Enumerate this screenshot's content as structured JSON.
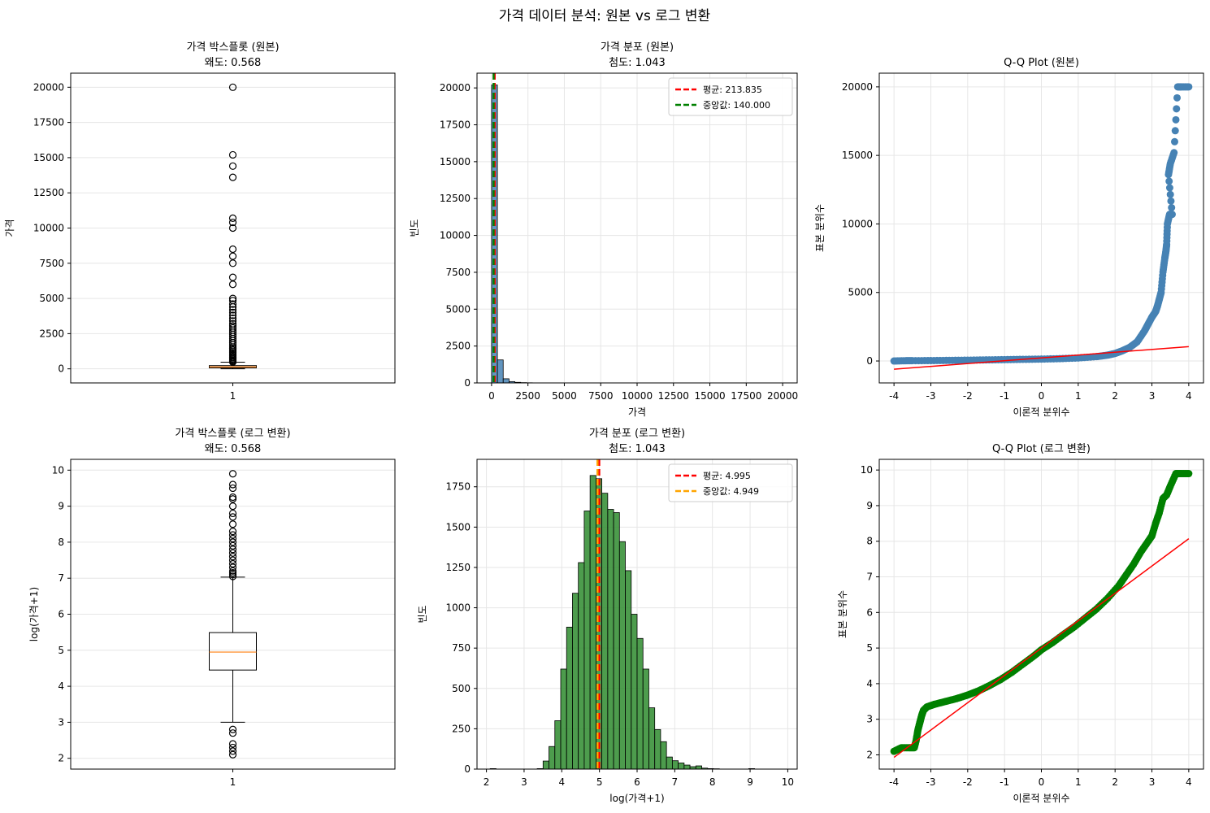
{
  "suptitle": "가격 데이터 분석: 원본 vs 로그 변환",
  "colors": {
    "steelblue": "#4682b4",
    "green": "#008000",
    "hist_green": "#2e8b2e",
    "red": "#ff0000",
    "orange": "#ffa500",
    "darkgreen": "#008000",
    "median_line": "#ff7f0e",
    "grid": "#e6e6e6"
  },
  "chart_data": [
    {
      "type": "box",
      "title": "가격 박스플롯 (원본)",
      "subtitle": "왜도: 0.568",
      "xlabel": "",
      "ylabel": "가격",
      "xticks": [
        "1"
      ],
      "ylim": [
        -1000,
        21000
      ],
      "yticks": [
        0,
        2500,
        5000,
        7500,
        10000,
        12500,
        15000,
        17500,
        20000
      ],
      "ytick_labels": [
        "0",
        "2500",
        "5000",
        "7500",
        "10000",
        "12500",
        "15000",
        "17500",
        "20000"
      ],
      "q1": 69,
      "median": 140,
      "q3": 229,
      "whisker_low": 0,
      "whisker_high": 469,
      "outliers": [
        480,
        550,
        620,
        700,
        780,
        850,
        950,
        1050,
        1150,
        1250,
        1350,
        1450,
        1550,
        1700,
        1850,
        2000,
        2150,
        2300,
        2450,
        2600,
        2750,
        2900,
        3050,
        3200,
        3400,
        3600,
        3800,
        4000,
        4200,
        4400,
        4600,
        4850,
        5000,
        6000,
        6500,
        7500,
        8000,
        8500,
        10000,
        10400,
        10700,
        13600,
        14400,
        15200,
        20000
      ]
    },
    {
      "type": "histogram",
      "title": "가격 분포 (원본)",
      "subtitle": "첨도: 1.043",
      "xlabel": "가격",
      "ylabel": "빈도",
      "xlim": [
        -1000,
        21000
      ],
      "ylim": [
        0,
        21000
      ],
      "xticks": [
        0,
        2500,
        5000,
        7500,
        10000,
        12500,
        15000,
        17500,
        20000
      ],
      "xtick_labels": [
        "0",
        "2500",
        "5000",
        "7500",
        "10000",
        "12500",
        "15000",
        "17500",
        "20000"
      ],
      "yticks": [
        0,
        2500,
        5000,
        7500,
        10000,
        12500,
        15000,
        17500,
        20000
      ],
      "ytick_labels": [
        "0",
        "2500",
        "5000",
        "7500",
        "10000",
        "12500",
        "15000",
        "17500",
        "20000"
      ],
      "bin_start": 0,
      "bin_width": 400,
      "counts": [
        20200,
        1560,
        280,
        90,
        40,
        20,
        10,
        5,
        5,
        0,
        0,
        0,
        0,
        0,
        0,
        0,
        0,
        0,
        0,
        0,
        0,
        0,
        0,
        0,
        0,
        0,
        0,
        0,
        0,
        0,
        0,
        0,
        0,
        0,
        0,
        0,
        0,
        0,
        0,
        0,
        0,
        0,
        0,
        0,
        0,
        0,
        0,
        0,
        0,
        0
      ],
      "bar_color": "steelblue",
      "mean": 213.835,
      "median": 140.0,
      "legend": [
        {
          "label": "평균: 213.835",
          "color": "#ff0000"
        },
        {
          "label": "중앙값: 140.000",
          "color": "#008000"
        }
      ],
      "legend_position": "upper right"
    },
    {
      "type": "scatter",
      "title": "Q-Q Plot (원본)",
      "xlabel": "이론적 분위수",
      "ylabel": "표본 분위수",
      "xlim": [
        -4.4,
        4.4
      ],
      "ylim": [
        -1600,
        21000
      ],
      "xticks": [
        -4,
        -3,
        -2,
        -1,
        0,
        1,
        2,
        3,
        4
      ],
      "xtick_labels": [
        "-4",
        "-3",
        "-2",
        "-1",
        "0",
        "1",
        "2",
        "3",
        "4"
      ],
      "yticks": [
        0,
        5000,
        10000,
        15000,
        20000
      ],
      "ytick_labels": [
        "0",
        "5000",
        "10000",
        "15000",
        "20000"
      ],
      "point_color": "steelblue",
      "points": [
        [
          -4.0,
          0
        ],
        [
          -3.7,
          20
        ],
        [
          -3.5,
          25
        ],
        [
          -3.0,
          30
        ],
        [
          -2.5,
          45
        ],
        [
          -2.0,
          60
        ],
        [
          -1.5,
          80
        ],
        [
          -1.0,
          100
        ],
        [
          -0.5,
          120
        ],
        [
          0.0,
          140
        ],
        [
          0.5,
          170
        ],
        [
          1.0,
          220
        ],
        [
          1.5,
          320
        ],
        [
          1.8,
          430
        ],
        [
          2.0,
          550
        ],
        [
          2.2,
          750
        ],
        [
          2.4,
          1000
        ],
        [
          2.6,
          1400
        ],
        [
          2.8,
          2200
        ],
        [
          2.9,
          2700
        ],
        [
          3.0,
          3200
        ],
        [
          3.1,
          3600
        ],
        [
          3.15,
          4000
        ],
        [
          3.2,
          4500
        ],
        [
          3.25,
          5000
        ],
        [
          3.3,
          6500
        ],
        [
          3.35,
          7500
        ],
        [
          3.38,
          8000
        ],
        [
          3.4,
          8500
        ],
        [
          3.42,
          10000
        ],
        [
          3.48,
          10700
        ],
        [
          3.55,
          10700
        ],
        [
          3.45,
          13600
        ],
        [
          3.5,
          14400
        ],
        [
          3.6,
          15200
        ],
        [
          3.7,
          20000
        ],
        [
          3.8,
          20000
        ],
        [
          4.0,
          20000
        ]
      ],
      "line": {
        "x": [
          -4.0,
          4.0
        ],
        "y": [
          -600,
          1050
        ],
        "color": "#ff0000"
      }
    },
    {
      "type": "box",
      "title": "가격 박스플롯 (로그 변환)",
      "subtitle": "왜도: 0.568",
      "xlabel": "",
      "ylabel": "log(가격+1)",
      "xticks": [
        "1"
      ],
      "ylim": [
        1.7,
        10.3
      ],
      "yticks": [
        2,
        3,
        4,
        5,
        6,
        7,
        8,
        9,
        10
      ],
      "ytick_labels": [
        "2",
        "3",
        "4",
        "5",
        "6",
        "7",
        "8",
        "9",
        "10"
      ],
      "q1": 4.45,
      "median": 4.949,
      "q3": 5.49,
      "whisker_low": 3.0,
      "whisker_high": 7.03,
      "outliers": [
        2.1,
        2.2,
        2.3,
        2.4,
        2.7,
        2.8,
        7.05,
        7.1,
        7.15,
        7.2,
        7.3,
        7.4,
        7.5,
        7.6,
        7.7,
        7.8,
        7.9,
        8.0,
        8.1,
        8.2,
        8.3,
        8.5,
        8.7,
        8.8,
        9.0,
        9.2,
        9.25,
        9.5,
        9.6,
        9.9
      ]
    },
    {
      "type": "histogram",
      "title": "가격 분포 (로그 변환)",
      "subtitle": "첨도: 1.043",
      "xlabel": "log(가격+1)",
      "ylabel": "빈도",
      "xlim": [
        1.75,
        10.25
      ],
      "ylim": [
        0,
        1920
      ],
      "xticks": [
        2,
        3,
        4,
        5,
        6,
        7,
        8,
        9,
        10
      ],
      "xtick_labels": [
        "2",
        "3",
        "4",
        "5",
        "6",
        "7",
        "8",
        "9",
        "10"
      ],
      "yticks": [
        0,
        250,
        500,
        750,
        1000,
        1250,
        1500,
        1750
      ],
      "ytick_labels": [
        "0",
        "250",
        "500",
        "750",
        "1000",
        "1250",
        "1500",
        "1750"
      ],
      "bin_start": 2.1,
      "bin_width": 0.156,
      "counts": [
        3,
        0,
        0,
        0,
        0,
        0,
        0,
        0,
        3,
        50,
        140,
        300,
        620,
        880,
        1090,
        1280,
        1600,
        1820,
        1800,
        1710,
        1610,
        1590,
        1410,
        1230,
        960,
        810,
        620,
        380,
        245,
        170,
        75,
        52,
        38,
        25,
        15,
        20,
        6,
        3,
        2,
        0,
        0,
        0,
        0,
        0,
        3,
        0,
        0,
        0,
        0,
        0
      ],
      "bar_color": "green",
      "mean": 4.995,
      "median": 4.949,
      "legend": [
        {
          "label": "평균: 4.995",
          "color": "#ff0000"
        },
        {
          "label": "중앙값: 4.949",
          "color": "#ffa500"
        }
      ],
      "legend_position": "upper right"
    },
    {
      "type": "scatter",
      "title": "Q-Q Plot (로그 변환)",
      "xlabel": "이론적 분위수",
      "ylabel": "표본 분위수",
      "xlim": [
        -4.4,
        4.4
      ],
      "ylim": [
        1.6,
        10.3
      ],
      "xticks": [
        -4,
        -3,
        -2,
        -1,
        0,
        1,
        2,
        3,
        4
      ],
      "xtick_labels": [
        "-4",
        "-3",
        "-2",
        "-1",
        "0",
        "1",
        "2",
        "3",
        "4"
      ],
      "yticks": [
        2,
        3,
        4,
        5,
        6,
        7,
        8,
        9,
        10
      ],
      "ytick_labels": [
        "2",
        "3",
        "4",
        "5",
        "6",
        "7",
        "8",
        "9",
        "10"
      ],
      "point_color": "green",
      "points": [
        [
          -4.0,
          2.1
        ],
        [
          -3.8,
          2.2
        ],
        [
          -3.6,
          2.2
        ],
        [
          -3.45,
          2.2
        ],
        [
          -3.4,
          2.4
        ],
        [
          -3.35,
          2.7
        ],
        [
          -3.3,
          2.9
        ],
        [
          -3.25,
          3.1
        ],
        [
          -3.2,
          3.25
        ],
        [
          -3.1,
          3.35
        ],
        [
          -2.9,
          3.42
        ],
        [
          -2.6,
          3.5
        ],
        [
          -2.3,
          3.58
        ],
        [
          -2.0,
          3.68
        ],
        [
          -1.7,
          3.8
        ],
        [
          -1.4,
          3.95
        ],
        [
          -1.1,
          4.12
        ],
        [
          -0.8,
          4.32
        ],
        [
          -0.5,
          4.55
        ],
        [
          -0.2,
          4.78
        ],
        [
          0.0,
          4.95
        ],
        [
          0.3,
          5.15
        ],
        [
          0.6,
          5.38
        ],
        [
          0.9,
          5.6
        ],
        [
          1.2,
          5.85
        ],
        [
          1.5,
          6.1
        ],
        [
          1.8,
          6.4
        ],
        [
          2.1,
          6.75
        ],
        [
          2.3,
          7.05
        ],
        [
          2.5,
          7.35
        ],
        [
          2.7,
          7.7
        ],
        [
          2.9,
          8.0
        ],
        [
          3.0,
          8.15
        ],
        [
          3.1,
          8.5
        ],
        [
          3.2,
          8.8
        ],
        [
          3.3,
          9.2
        ],
        [
          3.4,
          9.3
        ],
        [
          3.5,
          9.55
        ],
        [
          3.65,
          9.9
        ],
        [
          3.8,
          9.9
        ],
        [
          4.0,
          9.9
        ]
      ],
      "line": {
        "x": [
          -4.0,
          4.0
        ],
        "y": [
          1.93,
          8.07
        ],
        "color": "#ff0000"
      }
    }
  ]
}
